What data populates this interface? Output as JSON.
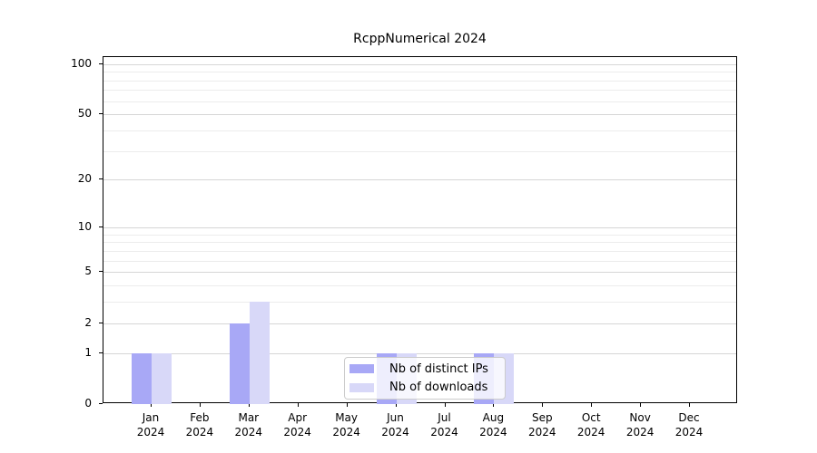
{
  "chart_data": {
    "type": "bar",
    "title": "RcppNumerical 2024",
    "year_label": "2024",
    "categories": [
      "Jan",
      "Feb",
      "Mar",
      "Apr",
      "May",
      "Jun",
      "Jul",
      "Aug",
      "Sep",
      "Oct",
      "Nov",
      "Dec"
    ],
    "series": [
      {
        "name": "Nb of distinct IPs",
        "color": "#a8a8f6",
        "values": [
          1,
          0,
          2,
          0,
          0,
          1,
          0,
          1,
          0,
          0,
          0,
          0
        ]
      },
      {
        "name": "Nb of downloads",
        "color": "#d8d8f8",
        "values": [
          1,
          0,
          3,
          0,
          0,
          1,
          0,
          1,
          0,
          0,
          0,
          0
        ]
      }
    ],
    "yscale": "log1p",
    "ylim": [
      0,
      110
    ],
    "y_ticks": [
      0,
      1,
      2,
      5,
      10,
      20,
      50,
      100
    ],
    "y_minor_gridlines": [
      3,
      4,
      6,
      7,
      8,
      9,
      30,
      40,
      60,
      70,
      80,
      90
    ],
    "grid": "horizontal",
    "legend_position": "bottom-center",
    "colors": {
      "spine": "#000000",
      "grid_major": "#d6d6d6",
      "grid_minor": "#ececec",
      "text": "#000000",
      "legend_border": "#cccccc"
    }
  }
}
